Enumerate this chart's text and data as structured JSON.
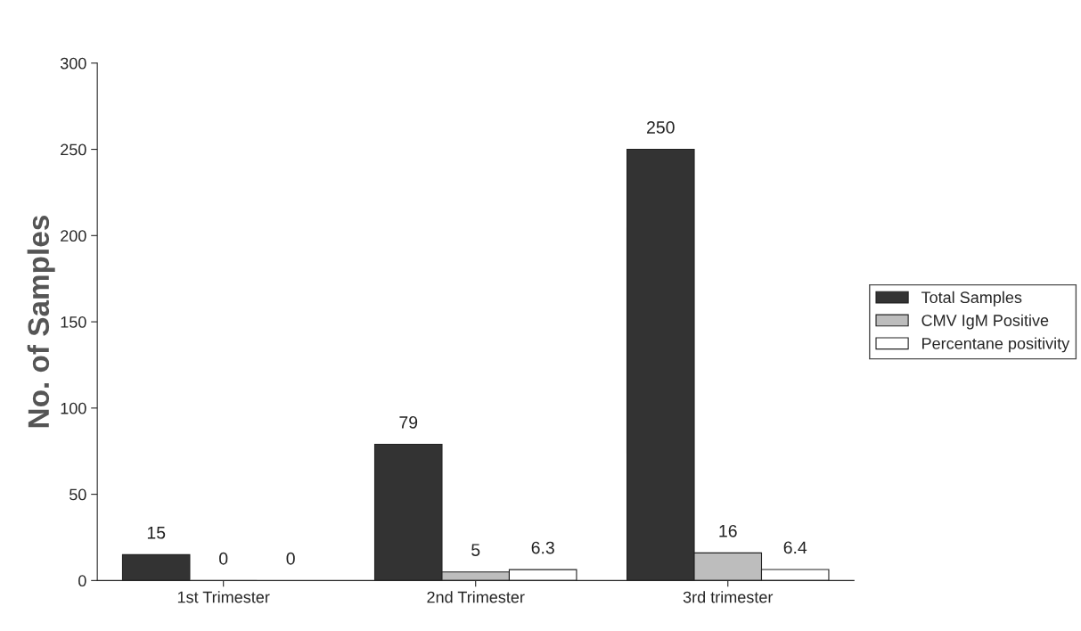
{
  "chart_data": {
    "type": "bar",
    "ylabel": "No. of Samples",
    "categories": [
      "1st Trimester",
      "2nd Trimester",
      "3rd trimester"
    ],
    "series": [
      {
        "name": "Total Samples",
        "color": "#333333",
        "values": [
          15,
          79,
          250
        ]
      },
      {
        "name": "CMV IgM Positive",
        "color": "#bdbdbd",
        "values": [
          0,
          5,
          16
        ]
      },
      {
        "name": "Percentane positivity",
        "color": "#ffffff",
        "values": [
          0,
          6.3,
          6.4
        ]
      }
    ],
    "ylim": [
      0,
      300
    ],
    "yticks": [
      0,
      50,
      100,
      150,
      200,
      250,
      300
    ],
    "data_labels": true,
    "legend": "right"
  }
}
